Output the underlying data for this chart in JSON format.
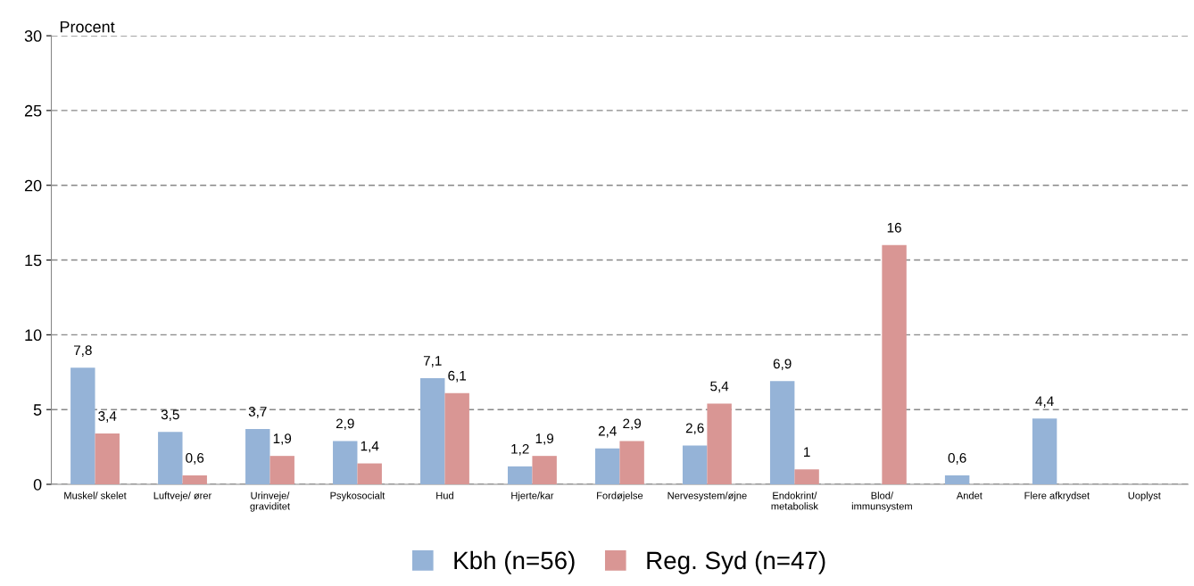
{
  "chart_data": {
    "type": "bar",
    "ylabel": "Procent",
    "categories": [
      "Muskel/ skelet",
      "Luftveje/ ører",
      "Urinveje/\ngraviditet",
      "Psykosocialt",
      "Hud",
      "Hjerte/kar",
      "Fordøjelse",
      "Nervesystem/øjne",
      "Endokrint/\nmetabolisk",
      "Blod/\nimmunsystem",
      "Andet",
      "Flere afkrydset",
      "Uoplyst"
    ],
    "series": [
      {
        "name": "Kbh (n=56)",
        "color": "#95b3d7",
        "values": [
          7.8,
          3.5,
          3.7,
          2.9,
          7.1,
          1.2,
          2.4,
          2.6,
          6.9,
          null,
          0.6,
          4.4,
          null
        ],
        "value_labels": [
          "7,8",
          "3,5",
          "3,7",
          "2,9",
          "7,1",
          "1,2",
          "2,4",
          "2,6",
          "6,9",
          null,
          "0,6",
          "4,4",
          null
        ]
      },
      {
        "name": "Reg. Syd (n=47)",
        "color": "#d99694",
        "values": [
          3.4,
          0.6,
          1.9,
          1.4,
          6.1,
          1.9,
          2.9,
          5.4,
          1,
          16,
          null,
          null,
          null
        ],
        "value_labels": [
          "3,4",
          "0,6",
          "1,9",
          "1,4",
          "6,1",
          "1,9",
          "2,9",
          "5,4",
          "1",
          "16",
          null,
          null,
          null
        ]
      }
    ],
    "ylim": [
      0,
      30
    ],
    "yticks": [
      0,
      5,
      10,
      15,
      20,
      25,
      30
    ],
    "grid": "y",
    "legend": "bottom"
  }
}
